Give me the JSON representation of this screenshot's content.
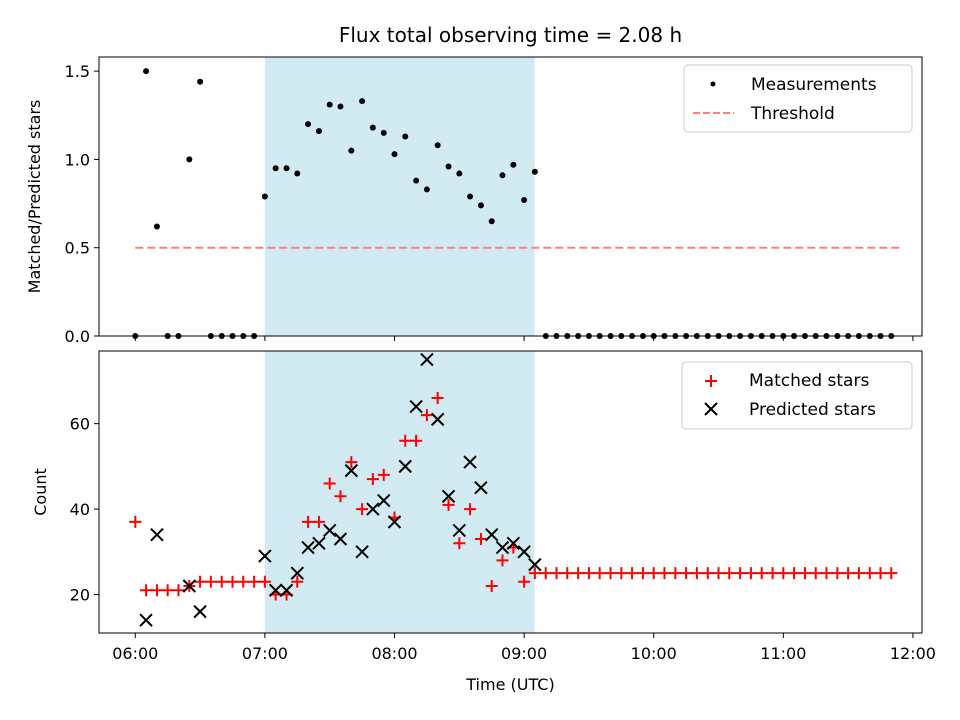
{
  "chart_data": [
    {
      "type": "scatter",
      "title": "Flux total observing time = 2.08 h",
      "xlabel": "",
      "ylabel": "Matched/Predicted stars",
      "ylim": [
        0,
        1.58
      ],
      "yticks": [
        0.0,
        0.5,
        1.0,
        1.5
      ],
      "ytick_labels": [
        "0.0",
        "0.5",
        "1.0",
        "1.5"
      ],
      "xlim_hours": [
        5.72,
        12.07
      ],
      "highlight_span_hours": [
        7.0,
        9.08
      ],
      "highlight_color": "#add8e6",
      "legend_position": "upper right",
      "series": [
        {
          "name": "Measurements",
          "marker": "dot",
          "color": "#000000",
          "points": [
            [
              6.0,
              0.0
            ],
            [
              6.083,
              1.5
            ],
            [
              6.167,
              0.62
            ],
            [
              6.25,
              0.0
            ],
            [
              6.333,
              0.0
            ],
            [
              6.417,
              1.0
            ],
            [
              6.5,
              1.44
            ],
            [
              6.583,
              0.0
            ],
            [
              6.667,
              0.0
            ],
            [
              6.75,
              0.0
            ],
            [
              6.833,
              0.0
            ],
            [
              6.917,
              0.0
            ],
            [
              7.0,
              0.79
            ],
            [
              7.083,
              0.95
            ],
            [
              7.167,
              0.95
            ],
            [
              7.25,
              0.92
            ],
            [
              7.333,
              1.2
            ],
            [
              7.417,
              1.16
            ],
            [
              7.5,
              1.31
            ],
            [
              7.583,
              1.3
            ],
            [
              7.667,
              1.05
            ],
            [
              7.75,
              1.33
            ],
            [
              7.833,
              1.18
            ],
            [
              7.917,
              1.15
            ],
            [
              8.0,
              1.03
            ],
            [
              8.083,
              1.13
            ],
            [
              8.167,
              0.88
            ],
            [
              8.25,
              0.83
            ],
            [
              8.333,
              1.08
            ],
            [
              8.417,
              0.96
            ],
            [
              8.5,
              0.92
            ],
            [
              8.583,
              0.79
            ],
            [
              8.667,
              0.74
            ],
            [
              8.75,
              0.65
            ],
            [
              8.833,
              0.91
            ],
            [
              8.917,
              0.97
            ],
            [
              9.0,
              0.77
            ],
            [
              9.083,
              0.93
            ],
            [
              9.167,
              0.0
            ],
            [
              9.25,
              0.0
            ],
            [
              9.333,
              0.0
            ],
            [
              9.417,
              0.0
            ],
            [
              9.5,
              0.0
            ],
            [
              9.583,
              0.0
            ],
            [
              9.667,
              0.0
            ],
            [
              9.75,
              0.0
            ],
            [
              9.833,
              0.0
            ],
            [
              9.917,
              0.0
            ],
            [
              10.0,
              0.0
            ],
            [
              10.083,
              0.0
            ],
            [
              10.167,
              0.0
            ],
            [
              10.25,
              0.0
            ],
            [
              10.333,
              0.0
            ],
            [
              10.417,
              0.0
            ],
            [
              10.5,
              0.0
            ],
            [
              10.583,
              0.0
            ],
            [
              10.667,
              0.0
            ],
            [
              10.75,
              0.0
            ],
            [
              10.833,
              0.0
            ],
            [
              10.917,
              0.0
            ],
            [
              11.0,
              0.0
            ],
            [
              11.083,
              0.0
            ],
            [
              11.167,
              0.0
            ],
            [
              11.25,
              0.0
            ],
            [
              11.333,
              0.0
            ],
            [
              11.417,
              0.0
            ],
            [
              11.5,
              0.0
            ],
            [
              11.583,
              0.0
            ],
            [
              11.667,
              0.0
            ],
            [
              11.75,
              0.0
            ],
            [
              11.833,
              0.0
            ]
          ]
        },
        {
          "name": "Threshold",
          "marker": "dashed-line",
          "color": "#ff7f7f",
          "x_range": [
            6.0,
            11.92
          ],
          "value": 0.5
        }
      ]
    },
    {
      "type": "scatter",
      "title": "",
      "xlabel": "Time (UTC)",
      "ylabel": "Count",
      "ylim": [
        11,
        77
      ],
      "yticks": [
        20,
        40,
        60
      ],
      "ytick_labels": [
        "20",
        "40",
        "60"
      ],
      "xlim_hours": [
        5.72,
        12.07
      ],
      "xticks_hours": [
        6,
        7,
        8,
        9,
        10,
        11,
        12
      ],
      "xtick_labels": [
        "06:00",
        "07:00",
        "08:00",
        "09:00",
        "10:00",
        "11:00",
        "12:00"
      ],
      "highlight_span_hours": [
        7.0,
        9.08
      ],
      "highlight_color": "#add8e6",
      "legend_position": "upper right",
      "series": [
        {
          "name": "Matched stars",
          "marker": "plus",
          "color": "#ff0000",
          "points": [
            [
              6.0,
              37
            ],
            [
              6.083,
              21
            ],
            [
              6.167,
              21
            ],
            [
              6.25,
              21
            ],
            [
              6.333,
              21
            ],
            [
              6.417,
              22
            ],
            [
              6.5,
              23
            ],
            [
              6.583,
              23
            ],
            [
              6.667,
              23
            ],
            [
              6.75,
              23
            ],
            [
              6.833,
              23
            ],
            [
              6.917,
              23
            ],
            [
              7.0,
              23
            ],
            [
              7.083,
              20
            ],
            [
              7.167,
              20
            ],
            [
              7.25,
              23
            ],
            [
              7.333,
              37
            ],
            [
              7.417,
              37
            ],
            [
              7.5,
              46
            ],
            [
              7.583,
              43
            ],
            [
              7.667,
              51
            ],
            [
              7.75,
              40
            ],
            [
              7.833,
              47
            ],
            [
              7.917,
              48
            ],
            [
              8.0,
              38
            ],
            [
              8.083,
              56
            ],
            [
              8.167,
              56
            ],
            [
              8.25,
              62
            ],
            [
              8.333,
              66
            ],
            [
              8.417,
              41
            ],
            [
              8.5,
              32
            ],
            [
              8.583,
              40
            ],
            [
              8.667,
              33
            ],
            [
              8.75,
              22
            ],
            [
              8.833,
              28
            ],
            [
              8.917,
              31
            ],
            [
              9.0,
              23
            ],
            [
              9.083,
              25
            ],
            [
              9.167,
              25
            ],
            [
              9.25,
              25
            ],
            [
              9.333,
              25
            ],
            [
              9.417,
              25
            ],
            [
              9.5,
              25
            ],
            [
              9.583,
              25
            ],
            [
              9.667,
              25
            ],
            [
              9.75,
              25
            ],
            [
              9.833,
              25
            ],
            [
              9.917,
              25
            ],
            [
              10.0,
              25
            ],
            [
              10.083,
              25
            ],
            [
              10.167,
              25
            ],
            [
              10.25,
              25
            ],
            [
              10.333,
              25
            ],
            [
              10.417,
              25
            ],
            [
              10.5,
              25
            ],
            [
              10.583,
              25
            ],
            [
              10.667,
              25
            ],
            [
              10.75,
              25
            ],
            [
              10.833,
              25
            ],
            [
              10.917,
              25
            ],
            [
              11.0,
              25
            ],
            [
              11.083,
              25
            ],
            [
              11.167,
              25
            ],
            [
              11.25,
              25
            ],
            [
              11.333,
              25
            ],
            [
              11.417,
              25
            ],
            [
              11.5,
              25
            ],
            [
              11.583,
              25
            ],
            [
              11.667,
              25
            ],
            [
              11.75,
              25
            ],
            [
              11.833,
              25
            ]
          ]
        },
        {
          "name": "Predicted stars",
          "marker": "x",
          "color": "#000000",
          "points": [
            [
              6.083,
              14
            ],
            [
              6.167,
              34
            ],
            [
              6.417,
              22
            ],
            [
              6.5,
              16
            ],
            [
              7.0,
              29
            ],
            [
              7.083,
              21
            ],
            [
              7.167,
              21
            ],
            [
              7.25,
              25
            ],
            [
              7.333,
              31
            ],
            [
              7.417,
              32
            ],
            [
              7.5,
              35
            ],
            [
              7.583,
              33
            ],
            [
              7.667,
              49
            ],
            [
              7.75,
              30
            ],
            [
              7.833,
              40
            ],
            [
              7.917,
              42
            ],
            [
              8.0,
              37
            ],
            [
              8.083,
              50
            ],
            [
              8.167,
              64
            ],
            [
              8.25,
              75
            ],
            [
              8.333,
              61
            ],
            [
              8.417,
              43
            ],
            [
              8.5,
              35
            ],
            [
              8.583,
              51
            ],
            [
              8.667,
              45
            ],
            [
              8.75,
              34
            ],
            [
              8.833,
              31
            ],
            [
              8.917,
              32
            ],
            [
              9.0,
              30
            ],
            [
              9.083,
              27
            ]
          ]
        }
      ]
    }
  ]
}
